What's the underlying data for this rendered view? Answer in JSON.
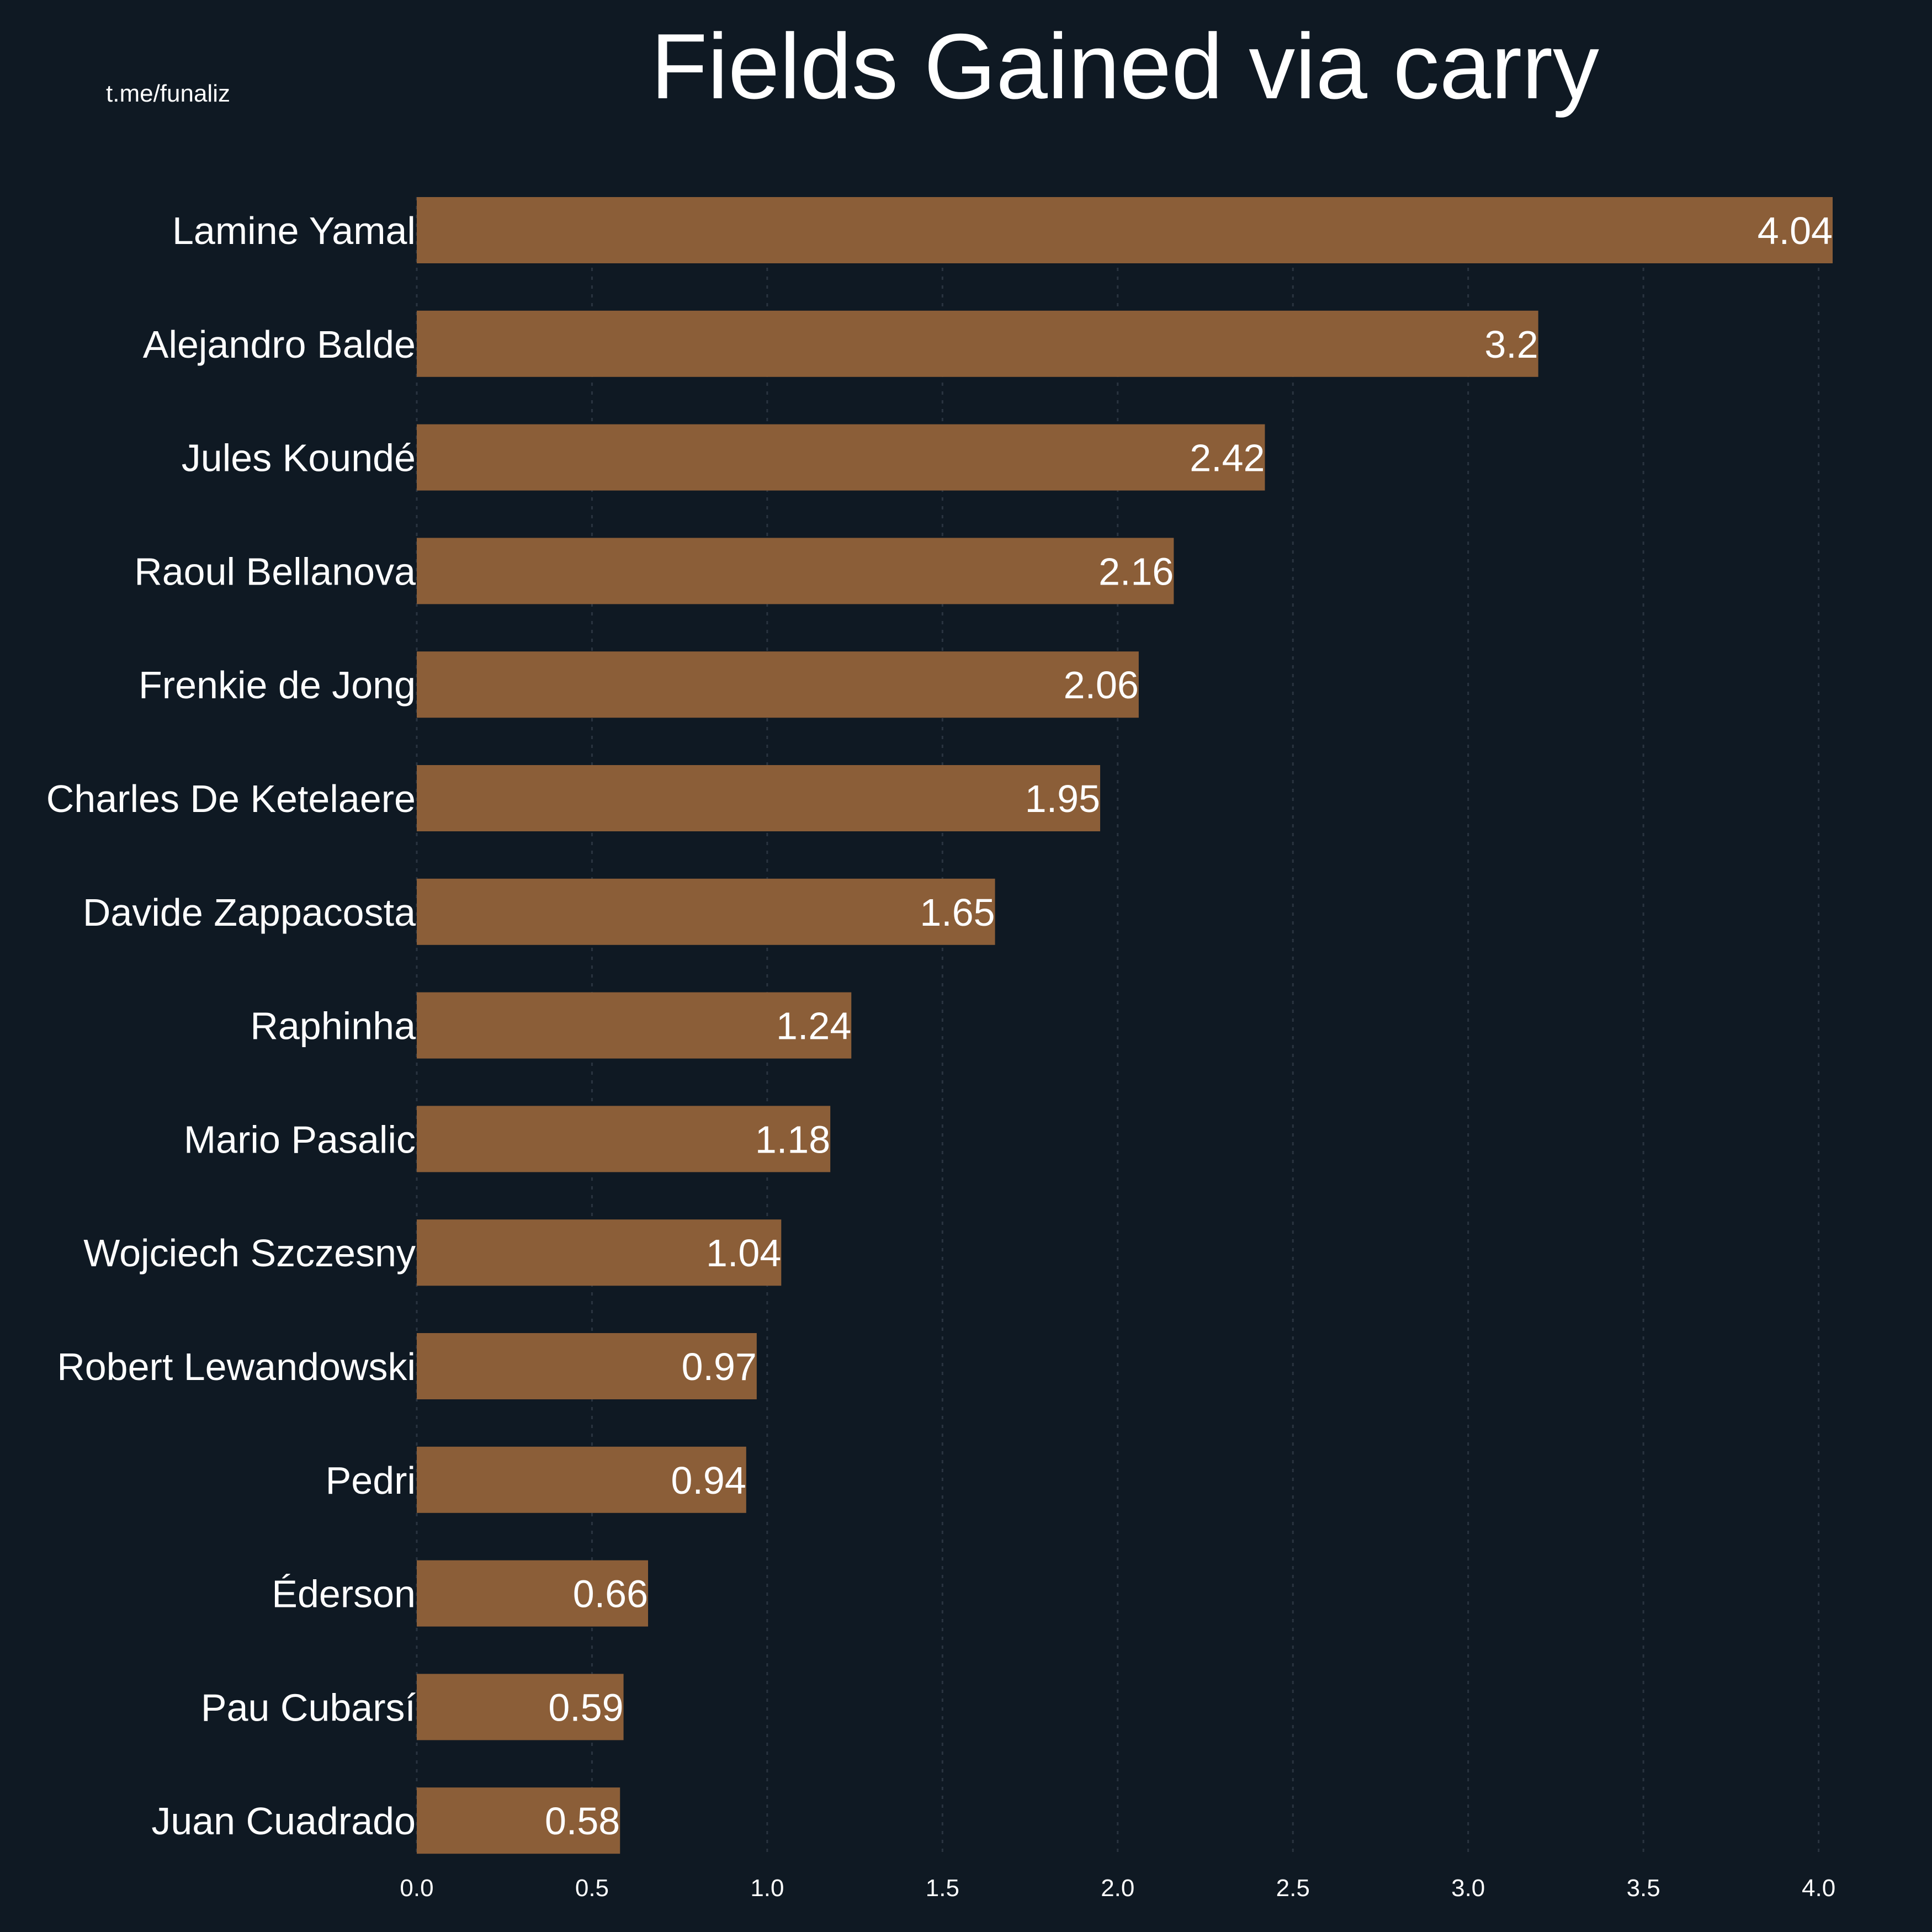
{
  "watermark": "t.me/funaliz",
  "colors": {
    "background": "#0f1923",
    "bar": "#8b5e38",
    "text": "#ffffff",
    "grid": "#2a3440"
  },
  "chart_data": {
    "type": "bar",
    "orientation": "horizontal",
    "title": "Fields Gained via carry",
    "xlabel": "",
    "ylabel": "",
    "grid": true,
    "xlim": [
      0,
      4.04
    ],
    "x_ticks": [
      "0.0",
      "0.5",
      "1.0",
      "1.5",
      "2.0",
      "2.5",
      "3.0",
      "3.5",
      "4.0"
    ],
    "categories": [
      "Lamine Yamal",
      "Alejandro Balde",
      "Jules Koundé",
      "Raoul Bellanova",
      "Frenkie de Jong",
      "Charles De Ketelaere",
      "Davide Zappacosta",
      "Raphinha",
      "Mario Pasalic",
      "Wojciech Szczesny",
      "Robert Lewandowski",
      "Pedri",
      "Éderson",
      "Pau Cubarsí",
      "Juan Cuadrado"
    ],
    "values": [
      4.04,
      3.2,
      2.42,
      2.16,
      2.06,
      1.95,
      1.65,
      1.24,
      1.18,
      1.04,
      0.97,
      0.94,
      0.66,
      0.59,
      0.58
    ],
    "value_labels": [
      "4.04",
      "3.2",
      "2.42",
      "2.16",
      "2.06",
      "1.95",
      "1.65",
      "1.24",
      "1.18",
      "1.04",
      "0.97",
      "0.94",
      "0.66",
      "0.59",
      "0.58"
    ]
  }
}
